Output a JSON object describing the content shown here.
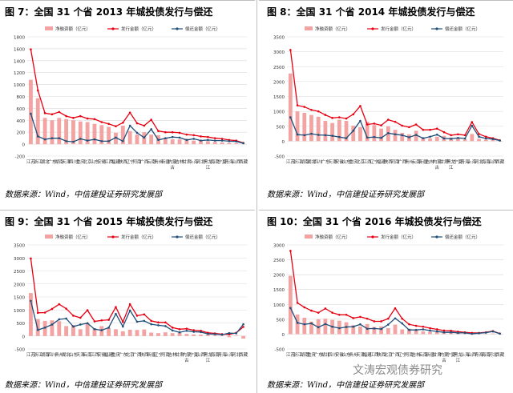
{
  "source_text": "数据来源：Wind，中信建投证券研究发展部",
  "watermark": "文涛宏观债券研究",
  "colors": {
    "bar": "#f4a3a3",
    "issue": "#e60012",
    "repay": "#1f4e79",
    "grid": "#d9d9d9"
  },
  "chart_data": [
    {
      "type": "bar",
      "title": "图 7：全国 31 个省 2013 年城投债发行与偿还",
      "legend": [
        "净融资额（亿元）",
        "发行金额（亿元）",
        "偿还金额（亿元）"
      ],
      "yticks": [
        -200,
        0,
        200,
        400,
        600,
        800,
        1000,
        1200,
        1400,
        1600,
        1800
      ],
      "ylim": [
        -200,
        1800
      ],
      "categories": [
        "江苏",
        "浙江",
        "湖北",
        "广东",
        "湖南",
        "天津",
        "四川",
        "重庆",
        "北京",
        "山东",
        "安徽",
        "江西",
        "福建",
        "陕西",
        "辽宁",
        "河南",
        "广西",
        "云南",
        "贵州",
        "新疆",
        "内蒙古",
        "吉林",
        "甘肃",
        "上海",
        "河北",
        "黑龙江",
        "海南",
        "宁夏",
        "青海",
        "山西",
        "西藏"
      ],
      "series": [
        {
          "name": "净融资额（亿元）",
          "kind": "bar",
          "values": [
            1080,
            770,
            440,
            400,
            440,
            420,
            400,
            380,
            370,
            340,
            320,
            290,
            190,
            310,
            220,
            160,
            200,
            160,
            150,
            100,
            80,
            80,
            90,
            60,
            70,
            50,
            40,
            30,
            20,
            15,
            5
          ]
        },
        {
          "name": "发行金额（亿元）",
          "kind": "line",
          "values": [
            1590,
            900,
            520,
            500,
            540,
            470,
            440,
            470,
            430,
            420,
            370,
            340,
            300,
            360,
            530,
            350,
            310,
            410,
            220,
            200,
            200,
            190,
            160,
            150,
            130,
            120,
            100,
            90,
            70,
            60,
            20
          ]
        },
        {
          "name": "偿还金额（亿元）",
          "kind": "line",
          "values": [
            510,
            130,
            80,
            100,
            100,
            50,
            40,
            90,
            60,
            80,
            50,
            50,
            110,
            50,
            310,
            190,
            110,
            250,
            70,
            100,
            120,
            110,
            70,
            90,
            60,
            70,
            60,
            60,
            50,
            45,
            15
          ]
        }
      ]
    },
    {
      "type": "bar",
      "title": "图 8：全国 31 个省 2014 年城投债发行与偿还",
      "legend": [
        "净融资额（亿元）",
        "发行金额（亿元）",
        "偿还金额（亿元）"
      ],
      "yticks": [
        -500,
        0,
        500,
        1000,
        1500,
        2000,
        2500,
        3000,
        3500
      ],
      "ylim": [
        -500,
        3500
      ],
      "categories": [
        "江苏",
        "浙江",
        "湖南",
        "湖北",
        "四川",
        "广东",
        "天津",
        "安徽",
        "山东",
        "重庆",
        "北京",
        "江西",
        "辽宁",
        "福建",
        "陕西",
        "河南",
        "广西",
        "贵州",
        "云南",
        "新疆",
        "吉林",
        "内蒙古",
        "甘肃",
        "黑龙江",
        "宁夏",
        "青海",
        "上海",
        "河北",
        "海南",
        "山西",
        "西藏"
      ],
      "series": [
        {
          "name": "净融资额（亿元）",
          "kind": "bar",
          "values": [
            2270,
            1000,
            950,
            880,
            820,
            680,
            610,
            720,
            680,
            520,
            470,
            650,
            540,
            420,
            500,
            380,
            280,
            230,
            350,
            120,
            100,
            150,
            180,
            120,
            90,
            60,
            240,
            80,
            50,
            40,
            10
          ]
        },
        {
          "name": "发行金额（亿元）",
          "kind": "line",
          "values": [
            3060,
            1200,
            1150,
            1050,
            1000,
            880,
            780,
            800,
            760,
            900,
            1180,
            560,
            590,
            530,
            720,
            650,
            520,
            470,
            560,
            380,
            380,
            420,
            300,
            200,
            230,
            200,
            640,
            240,
            150,
            100,
            30
          ]
        },
        {
          "name": "偿还金额（亿元）",
          "kind": "line",
          "values": [
            800,
            220,
            200,
            250,
            210,
            200,
            180,
            140,
            100,
            350,
            680,
            120,
            140,
            110,
            270,
            230,
            200,
            130,
            210,
            100,
            150,
            220,
            90,
            80,
            110,
            90,
            520,
            150,
            90,
            70,
            20
          ]
        }
      ]
    },
    {
      "type": "bar",
      "title": "图 9：全国 31 个省 2015 年城投债发行与偿还",
      "legend": [
        "净融资额（亿元）",
        "发行金额（亿元）",
        "偿还金额（亿元）"
      ],
      "yticks": [
        -500,
        0,
        500,
        1000,
        1500,
        2000,
        2500,
        3000,
        3500
      ],
      "ylim": [
        -500,
        3500
      ],
      "categories": [
        "江苏",
        "浙江",
        "湖南",
        "四川",
        "贵州",
        "湖北",
        "山东",
        "天津",
        "云南",
        "江西",
        "安徽",
        "福建",
        "重庆",
        "广东",
        "北京",
        "广西",
        "陕西",
        "新疆",
        "辽宁",
        "河南",
        "吉林",
        "甘肃",
        "内蒙古",
        "宁夏",
        "山西",
        "黑龙江",
        "海南",
        "青海",
        "上海",
        "河北",
        "西藏"
      ],
      "series": [
        {
          "name": "净融资额（亿元）",
          "kind": "bar",
          "values": [
            1650,
            650,
            580,
            600,
            570,
            380,
            420,
            260,
            500,
            300,
            380,
            300,
            260,
            180,
            240,
            230,
            250,
            130,
            110,
            140,
            110,
            120,
            80,
            60,
            50,
            40,
            30,
            20,
            -50,
            20,
            -100
          ]
        },
        {
          "name": "发行金额（亿元）",
          "kind": "line",
          "values": [
            2980,
            890,
            900,
            1040,
            1220,
            1050,
            780,
            700,
            990,
            560,
            600,
            620,
            1110,
            540,
            1220,
            780,
            830,
            580,
            520,
            520,
            320,
            260,
            280,
            220,
            200,
            120,
            100,
            70,
            60,
            120,
            350
          ]
        },
        {
          "name": "偿还金额（亿元）",
          "kind": "line",
          "values": [
            1350,
            230,
            320,
            440,
            640,
            670,
            360,
            440,
            490,
            260,
            220,
            320,
            850,
            360,
            980,
            550,
            580,
            450,
            410,
            380,
            210,
            140,
            200,
            160,
            150,
            80,
            70,
            50,
            110,
            100,
            450
          ]
        }
      ]
    },
    {
      "type": "bar",
      "title": "图 10：全国 31 个省 2016 年城投债发行与偿还",
      "legend": [
        "净融资额（亿元）",
        "发行金额（亿元）",
        "偿还金额（亿元）"
      ],
      "yticks": [
        -500,
        0,
        500,
        1000,
        1500,
        2000,
        2500,
        3000
      ],
      "ylim": [
        -500,
        3000
      ],
      "categories": [
        "江苏",
        "浙江",
        "湖南",
        "重庆",
        "广东",
        "湖北",
        "四川",
        "安徽",
        "山东",
        "贵州",
        "天津",
        "福建",
        "江西",
        "陕西",
        "北京",
        "广西",
        "辽宁",
        "河南",
        "吉林",
        "云南",
        "新疆",
        "甘肃",
        "内蒙古",
        "宁夏",
        "黑龙江",
        "上海",
        "山西",
        "青海",
        "海南",
        "河北",
        "西藏"
      ],
      "series": [
        {
          "name": "净融资额（亿元）",
          "kind": "bar",
          "values": [
            1960,
            660,
            550,
            420,
            500,
            520,
            480,
            450,
            400,
            300,
            260,
            340,
            240,
            260,
            200,
            320,
            160,
            180,
            140,
            90,
            80,
            70,
            60,
            50,
            40,
            20,
            30,
            10,
            10,
            20,
            5
          ]
        },
        {
          "name": "发行金额（亿元）",
          "kind": "line",
          "values": [
            2800,
            1050,
            900,
            790,
            720,
            860,
            720,
            650,
            650,
            540,
            580,
            520,
            430,
            430,
            520,
            870,
            520,
            330,
            280,
            250,
            200,
            160,
            120,
            110,
            80,
            60,
            40,
            40,
            60,
            100,
            20
          ]
        },
        {
          "name": "偿还金额（亿元）",
          "kind": "line",
          "values": [
            880,
            380,
            330,
            360,
            230,
            340,
            250,
            200,
            240,
            250,
            330,
            180,
            190,
            170,
            320,
            530,
            360,
            140,
            140,
            160,
            120,
            90,
            60,
            60,
            40,
            40,
            10,
            30,
            50,
            90,
            15
          ]
        }
      ]
    }
  ]
}
